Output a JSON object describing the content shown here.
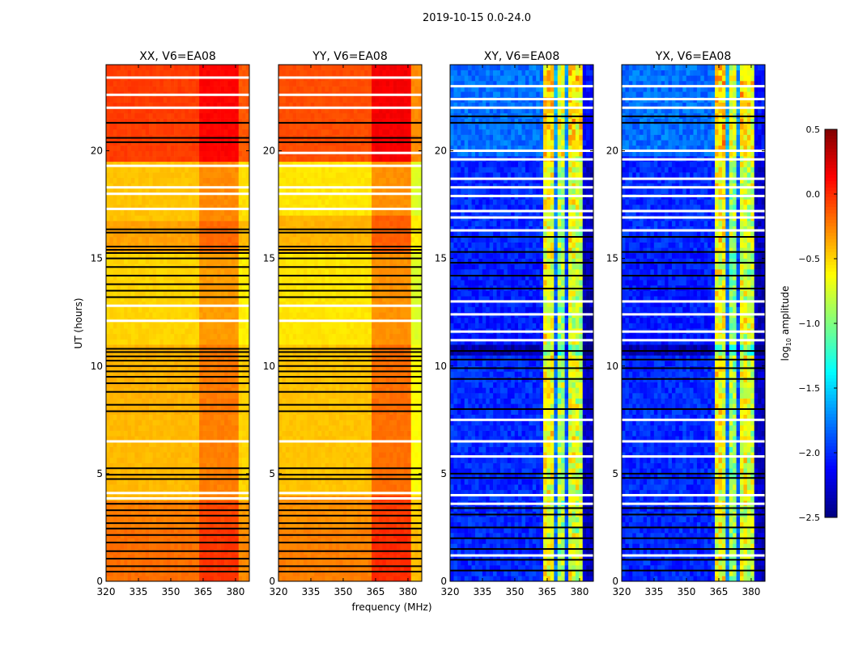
{
  "figure_title": "2019-10-15 0.0-24.0",
  "chart_data": {
    "type": "heatmap",
    "xlabel": "frequency (MHz)",
    "ylabel": "UT (hours)",
    "xlim": [
      320,
      386.4
    ],
    "ylim": [
      0,
      24
    ],
    "xticks": [
      "320",
      "335",
      "350",
      "365",
      "380"
    ],
    "xtick_values": [
      320,
      335,
      350,
      365,
      380
    ],
    "yticks": [
      "0",
      "5",
      "10",
      "15",
      "20"
    ],
    "ytick_values": [
      0,
      5,
      10,
      15,
      20
    ],
    "colorbar": {
      "label_prefix": "log",
      "label_sub": "10",
      "label_suffix": " amplitude",
      "range": [
        -2.5,
        0.5
      ],
      "ticks": [
        "0.5",
        "0.0",
        "−0.5",
        "−1.0",
        "−1.5",
        "−2.0",
        "−2.5"
      ],
      "tick_values": [
        0.5,
        0.0,
        -0.5,
        -1.0,
        -1.5,
        -2.0,
        -2.5
      ],
      "colormap": "jet"
    },
    "panels": [
      {
        "title": "XX, V6=EA08",
        "time_bands": [
          [
            0,
            2.5,
            -0.2
          ],
          [
            2.5,
            3.8,
            -0.25
          ],
          [
            3.8,
            7.7,
            -0.42
          ],
          [
            7.7,
            11,
            -0.4
          ],
          [
            11,
            15.2,
            -0.5
          ],
          [
            15.2,
            16.8,
            -0.35
          ],
          [
            16.8,
            19.6,
            -0.45
          ],
          [
            19.6,
            24,
            -0.05
          ]
        ],
        "freq_offsets": [
          [
            363,
            382,
            0.17
          ],
          [
            382,
            386.4,
            -0.08
          ]
        ],
        "flagged_black": [
          0.45,
          0.7,
          1.05,
          1.4,
          1.8,
          2.15,
          2.45,
          2.7,
          3.05,
          3.3,
          3.6,
          4.75,
          4.95,
          5.25,
          7.9,
          8.2,
          8.8,
          9.2,
          9.5,
          9.75,
          10.0,
          10.25,
          10.45,
          10.65,
          10.8,
          13.2,
          13.5,
          13.8,
          14.2,
          14.6,
          15.0,
          15.25,
          15.4,
          15.55,
          16.2,
          16.35,
          20.4,
          20.6,
          21.3
        ],
        "flagged_white": [
          3.85,
          4.1,
          6.5,
          12.1,
          12.8,
          17.3,
          18.0,
          18.3,
          19.3,
          22.0,
          22.6,
          23.4
        ]
      },
      {
        "title": "YY, V6=EA08",
        "time_bands": [
          [
            0,
            2.5,
            -0.25
          ],
          [
            2.5,
            4,
            -0.3
          ],
          [
            4,
            7.7,
            -0.45
          ],
          [
            7.7,
            11,
            -0.45
          ],
          [
            11,
            15.2,
            -0.55
          ],
          [
            15.2,
            17,
            -0.4
          ],
          [
            17,
            19.6,
            -0.55
          ],
          [
            19.6,
            24,
            -0.1
          ]
        ],
        "freq_offsets": [
          [
            363,
            382,
            0.25
          ],
          [
            382,
            386.4,
            -0.18
          ]
        ],
        "flagged_black": [
          0.45,
          0.7,
          1.05,
          1.4,
          1.8,
          2.15,
          2.45,
          2.7,
          3.05,
          3.3,
          3.6,
          4.75,
          4.95,
          5.25,
          7.9,
          8.2,
          8.8,
          9.2,
          9.5,
          9.75,
          10.0,
          10.25,
          10.45,
          10.65,
          10.8,
          13.2,
          13.5,
          13.8,
          14.2,
          14.6,
          15.0,
          15.25,
          15.4,
          15.55,
          16.2,
          16.35,
          20.4,
          20.6,
          21.3
        ],
        "flagged_white": [
          3.85,
          4.1,
          6.5,
          12.1,
          12.8,
          17.3,
          18.0,
          18.3,
          19.3,
          19.9,
          22.0,
          22.6,
          23.4
        ]
      },
      {
        "title": "XY, V6=EA08",
        "time_bands": [
          [
            0,
            10.5,
            -2.0
          ],
          [
            10.5,
            11,
            -2.35
          ],
          [
            11,
            15.2,
            -2.05
          ],
          [
            15.2,
            19.7,
            -2.0
          ],
          [
            19.7,
            24,
            -1.8
          ]
        ],
        "freq_offsets": [
          [
            363,
            368,
            1.35
          ],
          [
            368,
            369.5,
            0.2
          ],
          [
            369.5,
            373,
            1.1
          ],
          [
            373,
            374,
            0.1
          ],
          [
            374,
            378,
            1.3
          ],
          [
            378,
            378.7,
            0.1
          ],
          [
            378.7,
            381,
            1.2
          ],
          [
            381,
            386.4,
            -0.3
          ]
        ],
        "flagged_black": [
          0.5,
          1.0,
          1.5,
          2.0,
          2.5,
          3.1,
          3.4,
          4.8,
          5.0,
          8.0,
          9.4,
          9.9,
          10.3,
          10.7,
          13.6,
          14.2,
          14.8,
          15.3,
          16.0,
          21.3,
          21.6
        ],
        "flagged_white": [
          1.2,
          3.6,
          4.0,
          5.8,
          6.5,
          7.5,
          11.2,
          11.6,
          12.4,
          13.0,
          16.3,
          16.9,
          17.2,
          17.9,
          18.3,
          18.7,
          19.6,
          20.0,
          22.0,
          22.4,
          23.0
        ]
      },
      {
        "title": "YX, V6=EA08",
        "time_bands": [
          [
            0,
            10.5,
            -2.0
          ],
          [
            10.5,
            11,
            -2.35
          ],
          [
            11,
            15.2,
            -2.05
          ],
          [
            15.2,
            19.7,
            -2.0
          ],
          [
            19.7,
            24,
            -1.8
          ]
        ],
        "freq_offsets": [
          [
            363,
            368,
            1.35
          ],
          [
            368,
            369.5,
            0.2
          ],
          [
            369.5,
            373,
            1.1
          ],
          [
            373,
            374,
            0.1
          ],
          [
            374,
            378,
            1.3
          ],
          [
            378,
            378.7,
            0.1
          ],
          [
            378.7,
            381,
            1.2
          ],
          [
            381,
            386.4,
            -0.3
          ]
        ],
        "flagged_black": [
          0.5,
          1.0,
          1.5,
          2.0,
          2.5,
          3.1,
          3.4,
          4.8,
          5.0,
          8.0,
          9.4,
          9.9,
          10.3,
          10.7,
          13.6,
          14.2,
          14.8,
          15.3,
          16.0,
          21.3,
          21.6
        ],
        "flagged_white": [
          1.2,
          3.6,
          4.0,
          5.8,
          6.5,
          7.5,
          11.2,
          11.6,
          12.4,
          13.0,
          16.3,
          16.9,
          17.2,
          17.9,
          18.3,
          18.7,
          19.6,
          20.0,
          22.0,
          22.4,
          23.0
        ]
      }
    ]
  }
}
